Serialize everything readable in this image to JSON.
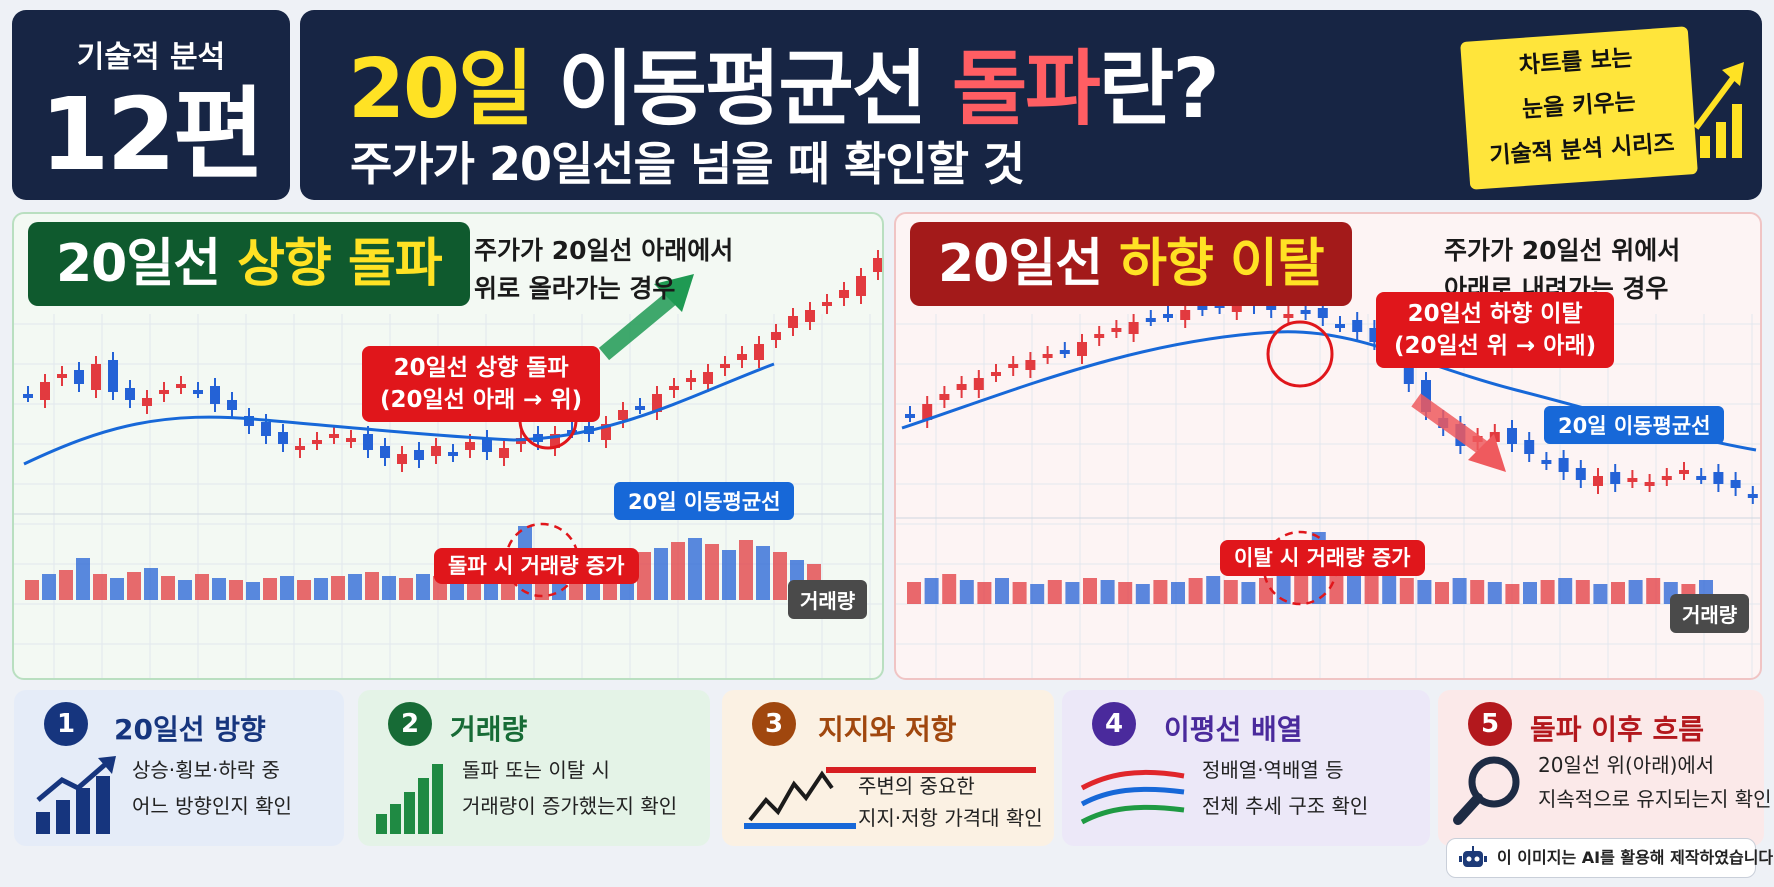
{
  "series": {
    "label": "기술적 분석",
    "episode": "12편"
  },
  "title": {
    "part1": "20일",
    "part2": " 이동평균선 ",
    "part3": "돌파",
    "part4": "란?"
  },
  "subtitle": "주가가 20일선을 넘을 때 확인할 것",
  "tagline": {
    "line1": "차트를 보는",
    "line2": "눈을 키우는",
    "line3": "기술적 분석 시리즈"
  },
  "panel_up": {
    "head_prefix": "20일선 ",
    "head_highlight": "상향 돌파",
    "desc_line1": "주가가 20일선 아래에서",
    "desc_line2": "위로 올라가는 경우",
    "callout_line1": "20일선 상향 돌파",
    "callout_line2": "(20일선 아래 → 위)",
    "ma_label": "20일 이동평균선",
    "volume_callout": "돌파 시 거래량 증가",
    "volume_label": "거래량"
  },
  "panel_down": {
    "head_prefix": "20일선 ",
    "head_highlight": "하향 이탈",
    "desc_line1": "주가가 20일선 위에서",
    "desc_line2": "아래로 내려가는 경우",
    "callout_line1": "20일선 하향 이탈",
    "callout_line2": "(20일선 위 → 아래)",
    "ma_label": "20일 이동평균선",
    "volume_callout": "이탈 시 거래량 증가",
    "volume_label": "거래량"
  },
  "cards": [
    {
      "num": "1",
      "title": "20일선 방향",
      "line1": "상승·횡보·하락 중",
      "line2": "어느 방향인지 확인",
      "icon": "rising-bar-chart-icon",
      "color": "#16357e"
    },
    {
      "num": "2",
      "title": "거래량",
      "line1": "돌파 또는 이탈 시",
      "line2": "거래량이 증가했는지 확인",
      "icon": "volume-bars-icon",
      "color": "#176b36"
    },
    {
      "num": "3",
      "title": "지지와 저항",
      "line1": "주변의 중요한",
      "line2": "지지·저항 가격대 확인",
      "icon": "support-resistance-icon",
      "color": "#a0470e"
    },
    {
      "num": "4",
      "title": "이평선 배열",
      "line1": "정배열·역배열 등",
      "line2": "전체 추세 구조 확인",
      "icon": "ma-alignment-icon",
      "color": "#4a2a9c"
    },
    {
      "num": "5",
      "title": "돌파 이후 흐름",
      "line1": "20일선 위(아래)에서",
      "line2": "지속적으로 유지되는지 확인",
      "icon": "magnifier-icon",
      "color": "#b3181d"
    }
  ],
  "ai_note": "이 이미지는 AI를 활용해 제작하였습니다.",
  "colors": {
    "navy": "#172544",
    "up_candle": "#e23a3f",
    "down_candle": "#2462d6",
    "ma_line": "#1768d8",
    "highlight_yellow": "#ffe224"
  }
}
